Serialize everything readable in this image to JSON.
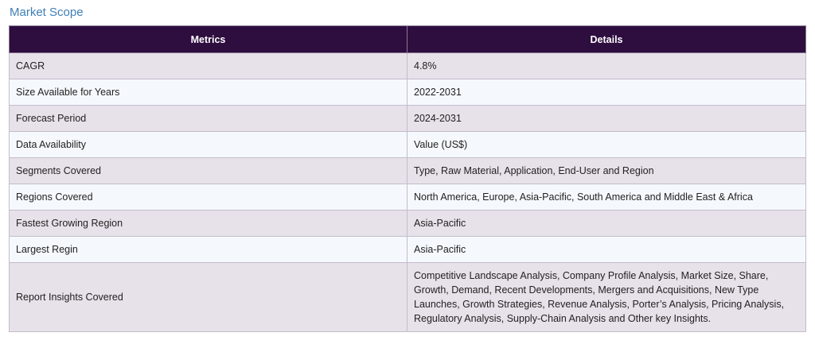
{
  "section_title": "Market Scope",
  "table": {
    "headers": [
      "Metrics",
      "Details"
    ],
    "rows": [
      {
        "metric": "CAGR",
        "detail": "4.8%"
      },
      {
        "metric": "Size Available for Years",
        "detail": "2022-2031"
      },
      {
        "metric": "Forecast Period",
        "detail": "2024-2031"
      },
      {
        "metric": "Data Availability",
        "detail": "Value (US$)"
      },
      {
        "metric": "Segments Covered",
        "detail": "Type, Raw Material, Application, End-User and Region"
      },
      {
        "metric": "Regions Covered",
        "detail": "North America, Europe, Asia-Pacific, South America and Middle East & Africa"
      },
      {
        "metric": "Fastest Growing Region",
        "detail": "Asia-Pacific"
      },
      {
        "metric": "Largest Regin",
        "detail": "Asia-Pacific"
      },
      {
        "metric": "Report Insights Covered",
        "detail": "Competitive Landscape Analysis, Company Profile Analysis, Market Size, Share, Growth, Demand, Recent Developments, Mergers and Acquisitions, New Type Launches, Growth Strategies, Revenue Analysis, Porter’s Analysis, Pricing Analysis, Regulatory Analysis, Supply-Chain Analysis and Other key Insights."
      }
    ]
  },
  "colors": {
    "title": "#3f7fb5",
    "header_bg": "#2e0d3f",
    "row_odd_bg": "#e7e1ea",
    "row_even_bg": "#f5f9fd"
  }
}
